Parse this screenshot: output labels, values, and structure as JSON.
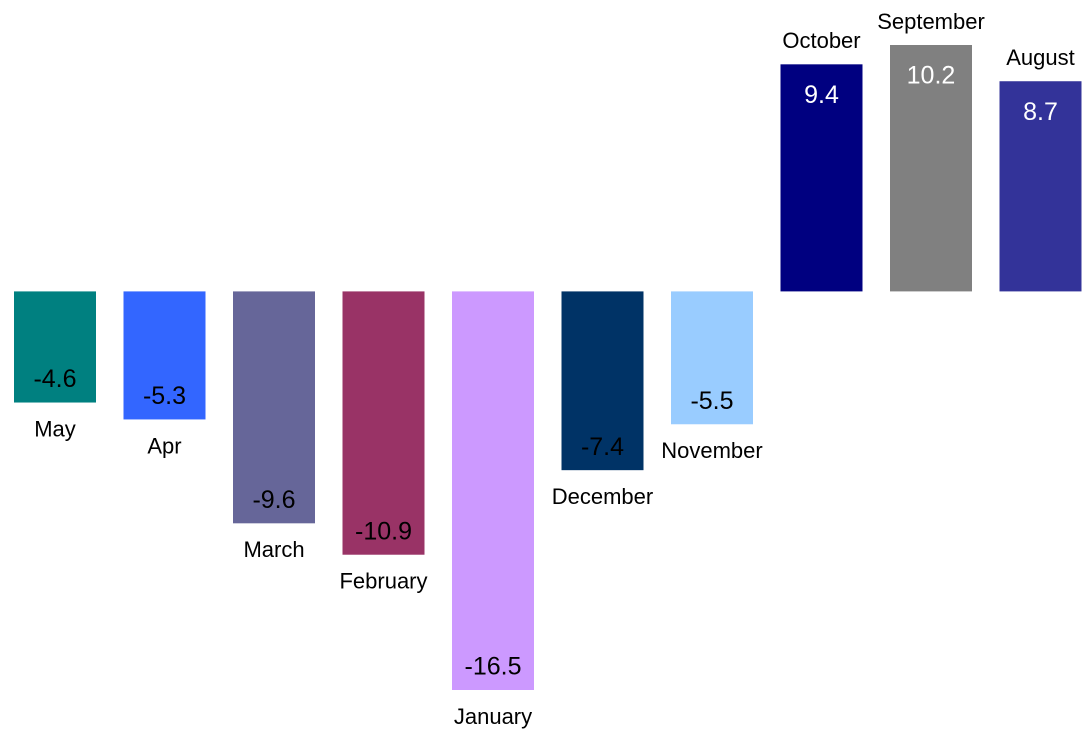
{
  "chart_data": {
    "type": "bar",
    "categories": [
      "May",
      "Apr",
      "March",
      "February",
      "January",
      "December",
      "November",
      "October",
      "September",
      "August"
    ],
    "values": [
      -4.6,
      -5.3,
      -9.6,
      -10.9,
      -16.5,
      -7.4,
      -5.5,
      9.4,
      10.2,
      8.7
    ],
    "colors": [
      "#008080",
      "#3366ff",
      "#666699",
      "#993366",
      "#cc99ff",
      "#003366",
      "#99ccff",
      "#000080",
      "#808080",
      "#333399"
    ]
  }
}
